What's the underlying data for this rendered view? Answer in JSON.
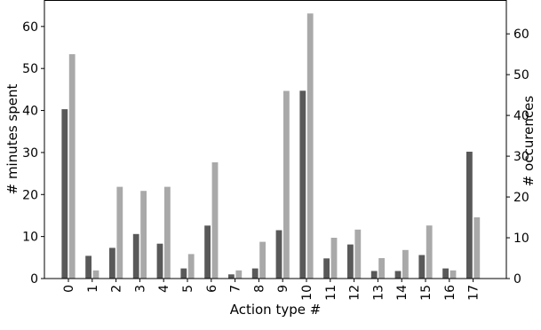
{
  "chart_data": {
    "type": "bar",
    "xlabel": "Action type #",
    "ylabel_left": "# minutes spent",
    "ylabel_right": "# occurences",
    "categories": [
      "0",
      "1",
      "2",
      "3",
      "4",
      "5",
      "6",
      "7",
      "8",
      "9",
      "10",
      "11",
      "12",
      "13",
      "14",
      "15",
      "16",
      "17"
    ],
    "series": [
      {
        "axis": "left",
        "color": "#595959",
        "values": [
          40.3,
          5.4,
          7.3,
          10.6,
          8.3,
          2.4,
          12.6,
          1.0,
          2.4,
          11.5,
          44.7,
          4.8,
          8.1,
          1.8,
          1.8,
          5.6,
          2.4,
          30.2
        ]
      },
      {
        "axis": "right",
        "color": "#a9a9a9",
        "values": [
          55,
          2,
          22.5,
          21.5,
          22.5,
          6,
          28.5,
          2,
          9,
          46,
          65,
          10,
          12,
          5,
          7,
          13,
          2,
          15
        ]
      }
    ],
    "ylim_left": [
      0,
      66.3
    ],
    "ylim_right": [
      0,
      68.3
    ],
    "yticks_left": [
      0,
      10,
      20,
      30,
      40,
      50,
      60
    ],
    "yticks_right": [
      0,
      10,
      20,
      30,
      40,
      50,
      60
    ],
    "grid": false
  }
}
